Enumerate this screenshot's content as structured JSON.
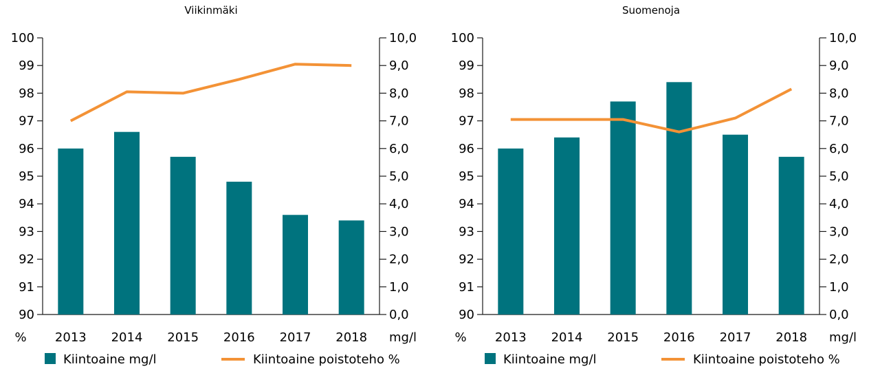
{
  "chart_data": [
    {
      "type": "bar",
      "title": "Viikinmäki",
      "categories": [
        "2013",
        "2014",
        "2015",
        "2016",
        "2017",
        "2018"
      ],
      "left_axis": {
        "label": "%",
        "ylim": [
          90,
          100
        ],
        "ticks": [
          "90",
          "91",
          "92",
          "93",
          "94",
          "95",
          "96",
          "97",
          "98",
          "99",
          "100"
        ]
      },
      "right_axis": {
        "label": "mg/l",
        "ylim": [
          0,
          10
        ],
        "ticks": [
          "0,0",
          "1,0",
          "2,0",
          "3,0",
          "4,0",
          "5,0",
          "6,0",
          "7,0",
          "8,0",
          "9,0",
          "10,0"
        ]
      },
      "series": [
        {
          "name": "Kiintoaine mg/l",
          "type": "bar",
          "axis": "right",
          "color": "#00737e",
          "values": [
            6.0,
            6.6,
            5.7,
            4.8,
            3.6,
            3.4
          ]
        },
        {
          "name": "Kiintoaine  poistoteho %",
          "type": "line",
          "axis": "left",
          "color": "#f39236",
          "values": [
            97.0,
            98.05,
            98.0,
            98.5,
            99.05,
            99.0
          ]
        }
      ],
      "grid": false,
      "legend_position": "bottom"
    },
    {
      "type": "bar",
      "title": "Suomenoja",
      "categories": [
        "2013",
        "2014",
        "2015",
        "2016",
        "2017",
        "2018"
      ],
      "left_axis": {
        "label": "%",
        "ylim": [
          90,
          100
        ],
        "ticks": [
          "90",
          "91",
          "92",
          "93",
          "94",
          "95",
          "96",
          "97",
          "98",
          "99",
          "100"
        ]
      },
      "right_axis": {
        "label": "mg/l",
        "ylim": [
          0,
          10
        ],
        "ticks": [
          "0,0",
          "1,0",
          "2,0",
          "3,0",
          "4,0",
          "5,0",
          "6,0",
          "7,0",
          "8,0",
          "9,0",
          "10,0"
        ]
      },
      "series": [
        {
          "name": "Kiintoaine mg/l",
          "type": "bar",
          "axis": "right",
          "color": "#00737e",
          "values": [
            6.0,
            6.4,
            7.7,
            8.4,
            6.5,
            5.7
          ]
        },
        {
          "name": "Kiintoaine  poistoteho %",
          "type": "line",
          "axis": "left",
          "color": "#f39236",
          "values": [
            97.05,
            97.05,
            97.05,
            96.6,
            97.1,
            98.15
          ]
        }
      ],
      "grid": false,
      "legend_position": "bottom"
    }
  ]
}
